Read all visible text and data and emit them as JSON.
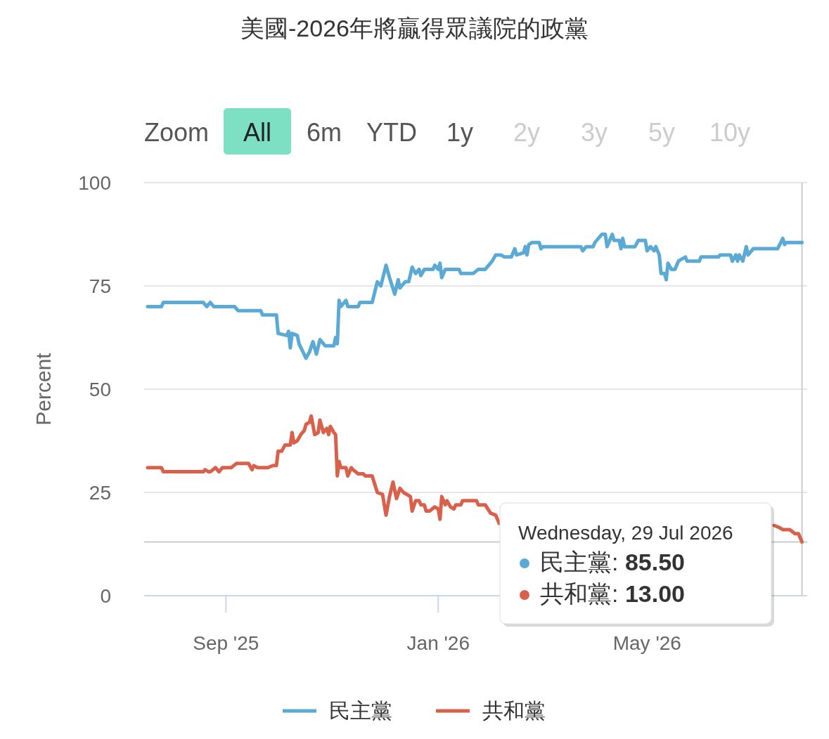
{
  "chart_data": {
    "type": "line",
    "title": "美國-2026年將贏得眾議院的政黨",
    "ylabel": "Percent",
    "xlim": [
      "2025-07-16",
      "2026-08-01"
    ],
    "ylim": [
      0,
      100
    ],
    "yticks": [
      0,
      25,
      50,
      75,
      100
    ],
    "xticks": [
      {
        "value": "2025-09-01",
        "label": "Sep '25"
      },
      {
        "value": "2026-01-01",
        "label": "Jan '26"
      },
      {
        "value": "2026-05-01",
        "label": "May '26"
      }
    ],
    "grid": "y",
    "legend": "bottom",
    "marker": "none",
    "line_style": "solid",
    "ref_lines": [
      {
        "axis": "x",
        "value": "2026-07-29",
        "color": "#cccccc"
      },
      {
        "axis": "y",
        "value": 13,
        "color": "#cccccc"
      }
    ],
    "annotations": [
      "Zoom",
      "All",
      "6m",
      "YTD",
      "1y",
      "2y",
      "3y",
      "5y",
      "10y",
      "Wednesday, 29 Jul 2026",
      "民主黨: 85.50",
      "共和黨: 13.00"
    ],
    "series": [
      {
        "name": "民主黨",
        "color": "#5aaad5",
        "x": [
          "2025-07-18",
          "2025-07-26",
          "2025-07-27",
          "2025-08-19",
          "2025-08-21",
          "2025-08-23",
          "2025-08-25",
          "2025-09-06",
          "2025-09-08",
          "2025-09-21",
          "2025-09-22",
          "2025-09-30",
          "2025-10-01",
          "2025-10-06",
          "2025-10-07",
          "2025-10-08",
          "2025-10-09",
          "2025-10-12",
          "2025-10-13",
          "2025-10-17",
          "2025-10-19",
          "2025-10-21",
          "2025-10-23",
          "2025-10-25",
          "2025-10-28",
          "2025-11-02",
          "2025-11-03",
          "2025-11-04",
          "2025-11-05",
          "2025-11-06",
          "2025-11-09",
          "2025-11-10",
          "2025-11-16",
          "2025-11-17",
          "2025-11-24",
          "2025-11-27",
          "2025-11-29",
          "2025-12-02",
          "2025-12-04",
          "2025-12-07",
          "2025-12-09",
          "2025-12-10",
          "2025-12-13",
          "2025-12-15",
          "2025-12-17",
          "2025-12-19",
          "2025-12-21",
          "2025-12-22",
          "2025-12-24",
          "2025-12-29",
          "2025-12-30",
          "2026-01-01",
          "2026-01-02",
          "2026-01-03",
          "2026-01-05",
          "2026-01-13",
          "2026-01-14",
          "2026-01-21",
          "2026-01-24",
          "2026-01-28",
          "2026-01-30",
          "2026-02-01",
          "2026-02-03",
          "2026-02-06",
          "2026-02-08",
          "2026-02-12",
          "2026-02-14",
          "2026-02-15",
          "2026-02-19",
          "2026-02-20",
          "2026-02-21",
          "2026-02-22",
          "2026-02-24",
          "2026-02-28",
          "2026-03-01",
          "2026-03-02",
          "2026-03-24",
          "2026-03-25",
          "2026-03-27",
          "2026-03-31",
          "2026-04-01",
          "2026-04-05",
          "2026-04-07",
          "2026-04-08",
          "2026-04-11",
          "2026-04-12",
          "2026-04-15",
          "2026-04-16",
          "2026-04-17",
          "2026-04-18",
          "2026-04-24",
          "2026-04-26",
          "2026-04-30",
          "2026-05-01",
          "2026-05-03",
          "2026-05-05",
          "2026-05-06",
          "2026-05-08",
          "2026-05-09",
          "2026-05-11",
          "2026-05-12",
          "2026-05-13",
          "2026-05-15",
          "2026-05-17",
          "2026-05-19",
          "2026-05-23",
          "2026-05-24",
          "2026-05-31",
          "2026-06-01",
          "2026-06-11",
          "2026-06-12",
          "2026-06-18",
          "2026-06-19",
          "2026-06-21",
          "2026-06-22",
          "2026-06-23",
          "2026-06-25",
          "2026-06-27",
          "2026-06-28",
          "2026-07-01",
          "2026-07-15",
          "2026-07-18",
          "2026-07-19",
          "2026-07-20",
          "2026-07-29"
        ],
        "values": [
          70,
          70,
          71,
          71,
          70,
          71,
          70,
          70,
          69,
          69,
          68,
          68,
          63.5,
          63,
          64,
          60,
          63.5,
          63,
          61,
          57.5,
          59,
          61.5,
          58.5,
          62,
          60.5,
          60.5,
          62.5,
          61,
          71.5,
          70,
          71.5,
          70,
          70,
          71,
          71,
          76,
          75,
          80,
          77,
          73,
          76.5,
          74.5,
          76,
          76,
          79.5,
          78,
          79,
          77.5,
          79,
          79,
          80,
          79,
          80.5,
          77,
          79,
          79,
          78,
          78,
          79,
          79,
          80,
          81,
          82.5,
          82.5,
          82,
          82,
          84,
          82.5,
          83,
          84.5,
          82.5,
          85,
          85.5,
          85.5,
          84,
          84.5,
          84.5,
          83.5,
          84.5,
          84.5,
          85.5,
          87.5,
          87.5,
          84.5,
          87.5,
          86,
          86,
          84,
          86.5,
          84.5,
          84.5,
          86,
          86,
          83.5,
          84.5,
          83.5,
          84.5,
          82.5,
          78,
          78,
          76.5,
          80.5,
          79,
          79,
          81,
          82,
          81,
          81,
          82,
          82,
          82.5,
          82.5,
          81,
          82.5,
          81,
          82.5,
          81,
          84.5,
          82.5,
          84,
          84,
          86.5,
          85,
          85.5,
          85.5
        ]
      },
      {
        "name": "共和黨",
        "color": "#d9604a",
        "x": [
          "2025-07-18",
          "2025-07-26",
          "2025-07-27",
          "2025-08-19",
          "2025-08-20",
          "2025-08-22",
          "2025-08-23",
          "2025-08-26",
          "2025-08-28",
          "2025-08-30",
          "2025-09-04",
          "2025-09-07",
          "2025-09-14",
          "2025-09-16",
          "2025-09-17",
          "2025-09-19",
          "2025-09-25",
          "2025-09-28",
          "2025-09-30",
          "2025-10-01",
          "2025-10-03",
          "2025-10-05",
          "2025-10-08",
          "2025-10-09",
          "2025-10-10",
          "2025-10-12",
          "2025-10-14",
          "2025-10-16",
          "2025-10-17",
          "2025-10-19",
          "2025-10-20",
          "2025-10-22",
          "2025-10-24",
          "2025-10-25",
          "2025-10-27",
          "2025-10-29",
          "2025-10-30",
          "2025-10-31",
          "2025-11-02",
          "2025-11-03",
          "2025-11-04",
          "2025-11-05",
          "2025-11-06",
          "2025-11-09",
          "2025-11-10",
          "2025-11-12",
          "2025-11-13",
          "2025-11-16",
          "2025-11-19",
          "2025-11-20",
          "2025-11-24",
          "2025-11-27",
          "2025-11-30",
          "2025-12-02",
          "2025-12-04",
          "2025-12-06",
          "2025-12-08",
          "2025-12-10",
          "2025-12-12",
          "2025-12-14",
          "2025-12-16",
          "2025-12-17",
          "2025-12-19",
          "2025-12-21",
          "2025-12-22",
          "2025-12-24",
          "2025-12-25",
          "2025-12-27",
          "2025-12-30",
          "2026-01-01",
          "2026-01-02",
          "2026-01-03",
          "2026-01-05",
          "2026-01-06",
          "2026-01-08",
          "2026-01-10",
          "2026-01-11",
          "2026-01-14",
          "2026-01-15",
          "2026-01-23",
          "2026-01-24",
          "2026-01-28",
          "2026-01-31",
          "2026-02-03",
          "2026-02-05",
          "2026-04-01",
          "2026-07-13",
          "2026-07-16",
          "2026-07-18",
          "2026-07-22",
          "2026-07-25",
          "2026-07-27",
          "2026-07-29"
        ],
        "values": [
          31,
          31,
          30,
          30,
          30.5,
          30,
          30,
          31,
          30,
          31,
          31,
          32,
          32,
          30.5,
          31.5,
          31,
          31,
          31.5,
          31.5,
          35,
          35,
          36.5,
          36.5,
          39.5,
          37,
          37.5,
          39,
          40,
          41.5,
          42,
          43.5,
          39,
          39.5,
          42.5,
          39.5,
          40.5,
          39,
          41,
          39.5,
          39,
          29,
          32.5,
          31,
          31,
          29,
          31,
          30.5,
          29.5,
          29.5,
          29,
          29,
          25,
          24.5,
          19.5,
          24,
          27.5,
          23.5,
          26,
          25,
          24.5,
          24,
          20.5,
          23,
          23,
          22,
          22,
          20.5,
          20.5,
          21.5,
          21,
          18.5,
          24,
          22,
          23,
          21.5,
          21,
          22,
          22,
          23,
          23,
          22,
          22,
          20,
          19.5,
          17.5,
          null,
          17,
          16.5,
          16,
          16,
          15,
          15,
          13
        ]
      }
    ]
  }
}
